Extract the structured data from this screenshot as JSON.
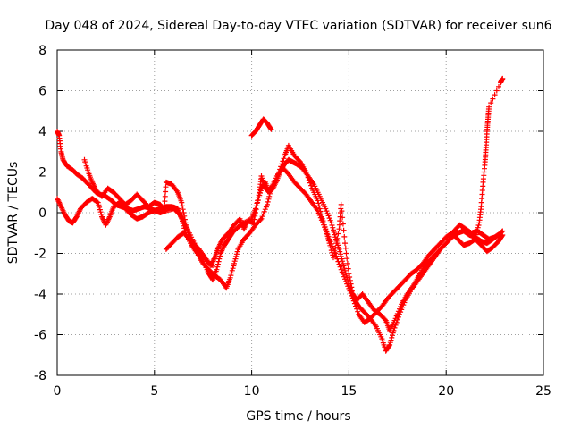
{
  "chart_data": {
    "type": "scatter",
    "title": "Day 048 of 2024, Sidereal Day-to-day VTEC variation (SDTVAR) for receiver sun6",
    "xlabel": "GPS time / hours",
    "ylabel": "SDTVAR / TECUs",
    "xlim": [
      0,
      25
    ],
    "ylim": [
      -8,
      8
    ],
    "xticks": [
      0,
      5,
      10,
      15,
      20,
      25
    ],
    "yticks": [
      -8,
      -6,
      -4,
      -2,
      0,
      2,
      4,
      6,
      8
    ],
    "grid": true,
    "marker": "+",
    "color": "#ff0000",
    "series": [
      {
        "name": "track-1",
        "points": [
          [
            0.0,
            4.0
          ],
          [
            0.1,
            3.8
          ],
          [
            0.2,
            3.0
          ],
          [
            0.3,
            2.6
          ],
          [
            0.5,
            2.3
          ],
          [
            0.8,
            2.1
          ],
          [
            1.0,
            1.9
          ],
          [
            1.3,
            1.7
          ],
          [
            1.5,
            1.5
          ],
          [
            1.8,
            1.2
          ],
          [
            2.0,
            1.0
          ],
          [
            2.2,
            0.9
          ],
          [
            2.5,
            0.8
          ],
          [
            2.8,
            0.6
          ],
          [
            3.0,
            0.4
          ],
          [
            3.3,
            0.3
          ],
          [
            3.6,
            0.2
          ],
          [
            3.9,
            0.1
          ],
          [
            4.2,
            0.2
          ],
          [
            4.5,
            0.3
          ],
          [
            4.8,
            0.2
          ],
          [
            5.0,
            0.1
          ],
          [
            5.3,
            0.0
          ],
          [
            5.6,
            0.1
          ],
          [
            6.0,
            0.2
          ],
          [
            6.3,
            -0.1
          ],
          [
            6.6,
            -0.6
          ],
          [
            6.9,
            -1.2
          ],
          [
            7.2,
            -1.8
          ],
          [
            7.5,
            -2.4
          ],
          [
            7.8,
            -3.0
          ],
          [
            8.0,
            -3.3
          ],
          [
            8.2,
            -2.8
          ],
          [
            8.4,
            -2.0
          ],
          [
            8.6,
            -1.6
          ],
          [
            8.8,
            -1.3
          ],
          [
            9.0,
            -1.0
          ],
          [
            9.3,
            -0.7
          ],
          [
            9.6,
            -0.5
          ],
          [
            10.0,
            -0.3
          ],
          [
            10.2,
            0.2
          ],
          [
            10.4,
            1.0
          ],
          [
            10.5,
            1.8
          ],
          [
            10.7,
            1.2
          ],
          [
            10.9,
            1.0
          ],
          [
            11.1,
            1.2
          ],
          [
            11.3,
            1.6
          ],
          [
            11.5,
            2.1
          ],
          [
            11.7,
            2.4
          ],
          [
            11.9,
            2.6
          ],
          [
            12.1,
            2.5
          ],
          [
            12.3,
            2.4
          ],
          [
            12.6,
            2.2
          ],
          [
            12.9,
            1.8
          ],
          [
            13.2,
            1.4
          ],
          [
            13.5,
            0.8
          ],
          [
            13.8,
            0.2
          ],
          [
            14.1,
            -0.5
          ],
          [
            14.3,
            -1.2
          ],
          [
            14.5,
            -1.8
          ],
          [
            14.7,
            -2.5
          ],
          [
            14.9,
            -3.2
          ],
          [
            15.1,
            -3.8
          ],
          [
            15.3,
            -4.3
          ],
          [
            15.5,
            -4.6
          ],
          [
            15.8,
            -4.9
          ],
          [
            16.1,
            -5.2
          ],
          [
            16.4,
            -5.6
          ],
          [
            16.7,
            -6.2
          ],
          [
            16.9,
            -6.8
          ],
          [
            17.1,
            -6.5
          ],
          [
            17.3,
            -5.8
          ],
          [
            17.6,
            -5.0
          ],
          [
            17.9,
            -4.3
          ],
          [
            18.2,
            -3.8
          ],
          [
            18.5,
            -3.4
          ],
          [
            18.8,
            -3.0
          ],
          [
            19.1,
            -2.6
          ],
          [
            19.4,
            -2.2
          ],
          [
            19.7,
            -1.8
          ],
          [
            20.0,
            -1.5
          ],
          [
            20.3,
            -1.2
          ],
          [
            20.6,
            -1.0
          ],
          [
            20.9,
            -0.9
          ],
          [
            21.2,
            -1.1
          ],
          [
            21.5,
            -1.2
          ],
          [
            21.8,
            -1.4
          ],
          [
            22.1,
            -1.5
          ],
          [
            22.4,
            -1.3
          ],
          [
            22.7,
            -1.1
          ],
          [
            22.9,
            -0.9
          ]
        ]
      },
      {
        "name": "track-2",
        "points": [
          [
            0.0,
            0.7
          ],
          [
            0.2,
            0.3
          ],
          [
            0.4,
            -0.1
          ],
          [
            0.6,
            -0.4
          ],
          [
            0.8,
            -0.5
          ],
          [
            1.0,
            -0.2
          ],
          [
            1.2,
            0.2
          ],
          [
            1.5,
            0.5
          ],
          [
            1.8,
            0.7
          ],
          [
            2.1,
            0.5
          ],
          [
            2.3,
            -0.2
          ],
          [
            2.5,
            -0.6
          ],
          [
            2.7,
            -0.2
          ],
          [
            2.9,
            0.3
          ],
          [
            3.2,
            0.5
          ],
          [
            3.5,
            0.2
          ],
          [
            3.8,
            -0.1
          ],
          [
            4.1,
            -0.3
          ],
          [
            4.4,
            -0.2
          ],
          [
            4.7,
            0.0
          ],
          [
            5.0,
            0.1
          ],
          [
            5.3,
            0.2
          ],
          [
            5.6,
            0.3
          ],
          [
            5.9,
            0.3
          ],
          [
            6.2,
            0.2
          ],
          [
            6.4,
            -0.3
          ],
          [
            6.6,
            -1.0
          ],
          [
            6.9,
            -1.6
          ],
          [
            7.2,
            -2.0
          ],
          [
            7.5,
            -2.5
          ],
          [
            7.8,
            -2.8
          ],
          [
            8.1,
            -3.1
          ],
          [
            8.4,
            -3.3
          ],
          [
            8.7,
            -3.7
          ],
          [
            8.9,
            -3.2
          ],
          [
            9.1,
            -2.5
          ],
          [
            9.3,
            -1.8
          ],
          [
            9.6,
            -1.3
          ],
          [
            9.9,
            -1.0
          ],
          [
            10.2,
            -0.6
          ],
          [
            10.5,
            -0.3
          ],
          [
            10.8,
            0.4
          ],
          [
            11.0,
            1.2
          ],
          [
            11.3,
            1.8
          ],
          [
            11.6,
            2.2
          ],
          [
            11.9,
            1.9
          ],
          [
            12.2,
            1.5
          ],
          [
            12.5,
            1.2
          ],
          [
            12.8,
            0.9
          ],
          [
            13.1,
            0.5
          ],
          [
            13.4,
            0.1
          ],
          [
            13.7,
            -0.6
          ],
          [
            14.0,
            -1.3
          ],
          [
            14.3,
            -2.0
          ],
          [
            14.6,
            -2.8
          ],
          [
            14.9,
            -3.5
          ],
          [
            15.2,
            -4.2
          ],
          [
            15.5,
            -5.0
          ],
          [
            15.8,
            -5.4
          ],
          [
            16.1,
            -5.2
          ],
          [
            16.4,
            -4.9
          ],
          [
            16.7,
            -4.6
          ],
          [
            17.0,
            -4.2
          ],
          [
            17.3,
            -3.9
          ],
          [
            17.6,
            -3.6
          ],
          [
            17.9,
            -3.3
          ],
          [
            18.2,
            -3.0
          ],
          [
            18.5,
            -2.8
          ],
          [
            18.8,
            -2.5
          ],
          [
            19.1,
            -2.1
          ],
          [
            19.4,
            -1.8
          ],
          [
            19.7,
            -1.5
          ],
          [
            20.0,
            -1.2
          ],
          [
            20.3,
            -1.0
          ],
          [
            20.6,
            -1.3
          ],
          [
            20.9,
            -1.6
          ],
          [
            21.2,
            -1.5
          ],
          [
            21.5,
            -1.3
          ],
          [
            21.8,
            -1.6
          ],
          [
            22.1,
            -1.9
          ],
          [
            22.4,
            -1.7
          ],
          [
            22.7,
            -1.4
          ],
          [
            22.9,
            -1.1
          ]
        ]
      },
      {
        "name": "track-3",
        "points": [
          [
            1.4,
            2.6
          ],
          [
            1.6,
            2.0
          ],
          [
            1.8,
            1.5
          ],
          [
            2.0,
            1.1
          ],
          [
            2.3,
            0.8
          ],
          [
            2.6,
            1.2
          ],
          [
            2.9,
            1.0
          ],
          [
            3.2,
            0.7
          ],
          [
            3.5,
            0.4
          ],
          [
            3.8,
            0.6
          ],
          [
            4.1,
            0.9
          ],
          [
            4.4,
            0.6
          ],
          [
            4.7,
            0.3
          ],
          [
            5.0,
            0.5
          ],
          [
            5.3,
            0.4
          ],
          [
            5.5,
            0.1
          ],
          [
            5.6,
            1.5
          ],
          [
            5.9,
            1.4
          ],
          [
            6.2,
            1.0
          ],
          [
            6.4,
            0.5
          ],
          [
            6.6,
            -0.5
          ],
          [
            6.8,
            -1.2
          ],
          [
            7.0,
            -1.5
          ],
          [
            7.3,
            -1.8
          ],
          [
            7.6,
            -2.2
          ],
          [
            7.9,
            -2.6
          ],
          [
            8.1,
            -2.2
          ],
          [
            8.3,
            -1.7
          ],
          [
            8.5,
            -1.3
          ],
          [
            8.8,
            -1.0
          ],
          [
            9.1,
            -0.6
          ],
          [
            9.4,
            -0.3
          ],
          [
            9.6,
            -0.8
          ],
          [
            9.8,
            -0.4
          ],
          [
            10.1,
            -0.5
          ],
          [
            10.3,
            0.5
          ],
          [
            10.5,
            1.2
          ],
          [
            10.7,
            1.5
          ],
          [
            10.9,
            1.0
          ],
          [
            11.1,
            1.4
          ],
          [
            11.4,
            2.0
          ],
          [
            11.7,
            2.8
          ],
          [
            11.9,
            3.3
          ],
          [
            12.2,
            2.8
          ],
          [
            12.5,
            2.5
          ],
          [
            12.8,
            2.0
          ],
          [
            13.1,
            1.2
          ],
          [
            13.4,
            0.6
          ],
          [
            13.6,
            -0.2
          ],
          [
            13.8,
            -0.8
          ],
          [
            14.0,
            -1.5
          ],
          [
            14.2,
            -2.2
          ],
          [
            14.5,
            -0.8
          ],
          [
            14.6,
            0.4
          ],
          [
            14.8,
            -1.5
          ],
          [
            15.0,
            -3.0
          ],
          [
            15.2,
            -4.0
          ],
          [
            15.4,
            -4.3
          ],
          [
            15.7,
            -4.0
          ],
          [
            16.0,
            -4.4
          ],
          [
            16.3,
            -4.8
          ],
          [
            16.6,
            -5.0
          ],
          [
            16.9,
            -5.3
          ],
          [
            17.1,
            -5.8
          ],
          [
            17.4,
            -5.2
          ],
          [
            17.7,
            -4.5
          ],
          [
            18.0,
            -4.0
          ],
          [
            18.3,
            -3.6
          ],
          [
            18.6,
            -3.1
          ],
          [
            18.9,
            -2.6
          ],
          [
            19.2,
            -2.3
          ],
          [
            19.5,
            -2.0
          ],
          [
            19.8,
            -1.7
          ],
          [
            20.1,
            -1.4
          ],
          [
            20.4,
            -0.9
          ],
          [
            20.7,
            -0.6
          ],
          [
            21.0,
            -0.8
          ],
          [
            21.3,
            -1.0
          ],
          [
            21.6,
            -0.9
          ],
          [
            21.9,
            -1.1
          ],
          [
            22.2,
            -1.3
          ],
          [
            22.5,
            -1.2
          ],
          [
            22.8,
            -1.0
          ]
        ]
      },
      {
        "name": "track-4",
        "points": [
          [
            10.0,
            3.8
          ],
          [
            10.2,
            4.0
          ],
          [
            10.4,
            4.3
          ],
          [
            10.6,
            4.6
          ],
          [
            10.8,
            4.4
          ],
          [
            11.0,
            4.1
          ]
        ]
      },
      {
        "name": "track-5",
        "points": [
          [
            5.6,
            -1.8
          ],
          [
            5.9,
            -1.5
          ],
          [
            6.2,
            -1.2
          ],
          [
            6.5,
            -1.0
          ],
          [
            6.8,
            -1.3
          ],
          [
            7.1,
            -1.6
          ],
          [
            7.4,
            -2.0
          ],
          [
            7.7,
            -2.4
          ],
          [
            8.0,
            -2.6
          ]
        ]
      },
      {
        "name": "spike",
        "points": [
          [
            21.5,
            -1.2
          ],
          [
            21.7,
            -0.5
          ],
          [
            21.8,
            0.3
          ],
          [
            21.9,
            1.5
          ],
          [
            22.0,
            2.5
          ],
          [
            22.05,
            3.2
          ],
          [
            22.1,
            4.0
          ],
          [
            22.15,
            4.6
          ],
          [
            22.2,
            5.2
          ],
          [
            22.8,
            6.4
          ],
          [
            22.85,
            6.5
          ],
          [
            22.9,
            6.6
          ]
        ]
      }
    ]
  }
}
